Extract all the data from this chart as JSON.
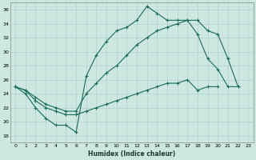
{
  "title": "",
  "xlabel": "Humidex (Indice chaleur)",
  "bg_color": "#cce8e0",
  "line_color": "#1a6b5a",
  "grid_color": "#aacccc",
  "xlim": [
    -0.5,
    23.5
  ],
  "ylim": [
    17,
    37
  ],
  "yticks": [
    18,
    20,
    22,
    24,
    26,
    28,
    30,
    32,
    34,
    36
  ],
  "xticks": [
    0,
    1,
    2,
    3,
    4,
    5,
    6,
    7,
    8,
    9,
    10,
    11,
    12,
    13,
    14,
    15,
    16,
    17,
    18,
    19,
    20,
    21,
    22,
    23
  ],
  "line1_x": [
    0,
    1,
    2,
    3,
    4,
    5,
    6,
    7,
    8,
    9,
    10,
    11,
    12,
    13,
    14,
    15,
    16,
    17,
    18,
    19,
    20,
    21,
    22
  ],
  "line1_y": [
    25.0,
    24.0,
    22.0,
    20.5,
    19.5,
    19.5,
    18.5,
    26.5,
    29.5,
    31.5,
    33.0,
    33.5,
    34.5,
    36.5,
    35.5,
    34.5,
    34.5,
    34.5,
    32.5,
    29.0,
    27.5,
    25.0,
    25.0
  ],
  "line2_x": [
    0,
    1,
    2,
    3,
    4,
    5,
    6,
    7,
    8,
    9,
    10,
    11,
    12,
    13,
    14,
    15,
    16,
    17,
    18,
    19,
    20,
    21,
    22
  ],
  "line2_y": [
    25.0,
    24.5,
    23.5,
    22.5,
    22.0,
    21.5,
    21.5,
    24.0,
    25.5,
    27.0,
    28.0,
    29.5,
    31.0,
    32.0,
    33.0,
    33.5,
    34.0,
    34.5,
    34.5,
    33.0,
    32.5,
    29.0,
    25.0
  ],
  "line3_x": [
    0,
    1,
    2,
    3,
    4,
    5,
    6,
    7,
    8,
    9,
    10,
    11,
    12,
    13,
    14,
    15,
    16,
    17,
    18,
    19,
    20
  ],
  "line3_y": [
    25.0,
    24.5,
    23.0,
    22.0,
    21.5,
    21.0,
    21.0,
    21.5,
    22.0,
    22.5,
    23.0,
    23.5,
    24.0,
    24.5,
    25.0,
    25.5,
    25.5,
    26.0,
    24.5,
    25.0,
    25.0
  ]
}
